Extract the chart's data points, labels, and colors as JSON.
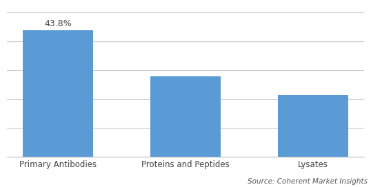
{
  "categories": [
    "Primary Antibodies",
    "Proteins and Peptides",
    "Lysates"
  ],
  "values": [
    43.8,
    28.0,
    21.5
  ],
  "bar_color": "#5B9BD5",
  "annotation_label": "43.8%",
  "source_text": "Source: Coherent Market Insights",
  "background_color": "#ffffff",
  "grid_color": "#cccccc",
  "ylim": [
    0,
    52
  ],
  "bar_width": 0.55,
  "annotation_fontsize": 9,
  "tick_fontsize": 8.5,
  "source_fontsize": 7.5,
  "grid_yticks": [
    0,
    10,
    20,
    30,
    40,
    50
  ]
}
